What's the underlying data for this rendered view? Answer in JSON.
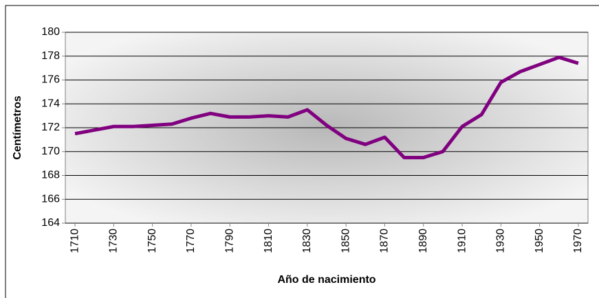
{
  "chart_data": {
    "type": "line",
    "xlabel": "Año de nacimiento",
    "ylabel": "Centímetros",
    "x": [
      1710,
      1720,
      1730,
      1740,
      1750,
      1760,
      1770,
      1780,
      1790,
      1800,
      1810,
      1820,
      1830,
      1840,
      1850,
      1860,
      1870,
      1880,
      1890,
      1900,
      1910,
      1920,
      1930,
      1940,
      1950,
      1960,
      1970
    ],
    "series": [
      {
        "color": "#800080",
        "values": [
          171.5,
          171.8,
          172.1,
          172.1,
          172.2,
          172.3,
          172.8,
          173.2,
          172.9,
          172.9,
          173.0,
          172.9,
          173.5,
          172.2,
          171.1,
          170.6,
          171.2,
          169.5,
          169.5,
          170.0,
          172.1,
          173.1,
          175.8,
          176.7,
          177.3,
          177.9,
          177.4
        ]
      }
    ],
    "xlim": [
      1705,
      1975
    ],
    "xticks": [
      1710,
      1730,
      1750,
      1770,
      1790,
      1810,
      1830,
      1850,
      1870,
      1890,
      1910,
      1930,
      1950,
      1970
    ],
    "ylim": [
      164,
      180
    ],
    "yticks": [
      164,
      166,
      168,
      170,
      172,
      174,
      176,
      178,
      180
    ],
    "grid": true
  }
}
